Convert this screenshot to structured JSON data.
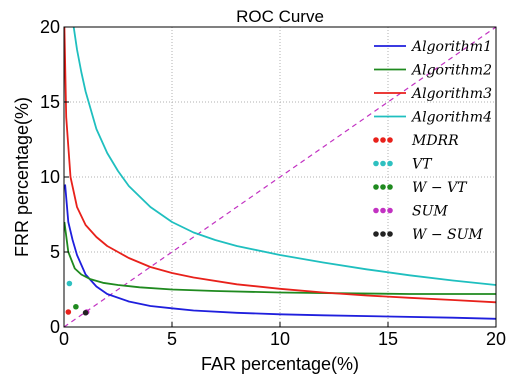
{
  "chart_data": {
    "type": "line",
    "title": "ROC Curve",
    "xlabel": "FAR percentage(%)",
    "ylabel": "FRR percentage(%)",
    "xlim": [
      0,
      20
    ],
    "ylim": [
      0,
      20
    ],
    "xticks": [
      0,
      5,
      10,
      15,
      20
    ],
    "yticks": [
      0,
      5,
      10,
      15,
      20
    ],
    "grid": true,
    "legend_position": "top-right",
    "series": [
      {
        "name": "Algorithm1",
        "color": "#1f1fdd",
        "x": [
          0.05,
          0.2,
          0.4,
          0.6,
          1.0,
          1.5,
          2.0,
          3.0,
          4.0,
          5.0,
          6.0,
          8.0,
          10.0,
          12.0,
          15.0,
          18.0,
          20.0
        ],
        "y": [
          9.5,
          7.0,
          5.8,
          4.8,
          3.5,
          2.7,
          2.2,
          1.7,
          1.4,
          1.25,
          1.1,
          0.95,
          0.85,
          0.78,
          0.7,
          0.62,
          0.55
        ]
      },
      {
        "name": "Algorithm2",
        "color": "#1f8a1f",
        "x": [
          0.02,
          0.2,
          0.5,
          0.8,
          1.2,
          1.8,
          2.5,
          3.5,
          5.0,
          7.0,
          10.0,
          13.0,
          16.0,
          20.0
        ],
        "y": [
          7.0,
          5.0,
          3.9,
          3.5,
          3.2,
          2.95,
          2.8,
          2.65,
          2.5,
          2.4,
          2.3,
          2.25,
          2.2,
          2.2
        ]
      },
      {
        "name": "Algorithm3",
        "color": "#e8211b",
        "x": [
          0.02,
          0.1,
          0.3,
          0.6,
          1.0,
          1.5,
          2.0,
          2.5,
          3.0,
          4.0,
          5.0,
          6.0,
          8.0,
          10.0,
          12.0,
          14.0,
          16.0,
          18.0,
          20.0
        ],
        "y": [
          20.0,
          14.0,
          10.0,
          8.0,
          6.8,
          6.0,
          5.4,
          5.0,
          4.6,
          4.0,
          3.6,
          3.3,
          2.85,
          2.55,
          2.3,
          2.1,
          1.95,
          1.8,
          1.65
        ]
      },
      {
        "name": "Algorithm4",
        "color": "#1fbfbf",
        "x": [
          0.45,
          0.6,
          0.8,
          1.0,
          1.5,
          2.0,
          2.5,
          3.0,
          4.0,
          5.0,
          6.0,
          7.0,
          8.0,
          10.0,
          12.0,
          14.0,
          16.0,
          18.0,
          20.0
        ],
        "y": [
          20.0,
          18.5,
          17.0,
          15.7,
          13.2,
          11.6,
          10.4,
          9.4,
          8.0,
          7.0,
          6.3,
          5.8,
          5.4,
          4.8,
          4.3,
          3.85,
          3.45,
          3.1,
          2.8
        ]
      }
    ],
    "points": [
      {
        "name": "MDRR",
        "color": "#e8211b",
        "x": 0.2,
        "y": 1.0
      },
      {
        "name": "VT",
        "color": "#2ec0c0",
        "x": 0.25,
        "y": 2.9
      },
      {
        "name": "W-VT",
        "color": "#1f8a1f",
        "x": 0.55,
        "y": 1.35
      },
      {
        "name": "SUM",
        "color": "#c232c2",
        "x": 1.05,
        "y": 1.0
      },
      {
        "name": "W-SUM",
        "color": "#222222",
        "x": 1.0,
        "y": 0.95
      }
    ],
    "diagonal": {
      "color": "#c232c2",
      "style": "dashed",
      "x": [
        0,
        20
      ],
      "y": [
        0,
        20
      ]
    },
    "legend": [
      {
        "label": "Algorithm1",
        "kind": "line",
        "color": "#1f1fdd"
      },
      {
        "label": "Algorithm2",
        "kind": "line",
        "color": "#1f8a1f"
      },
      {
        "label": "Algorithm3",
        "kind": "line",
        "color": "#e8211b"
      },
      {
        "label": "Algorithm4",
        "kind": "line",
        "color": "#1fbfbf"
      },
      {
        "label": "MDRR",
        "kind": "dots",
        "color": "#e8211b"
      },
      {
        "label": "VT",
        "kind": "dots",
        "color": "#2ec0c0"
      },
      {
        "label": "W − VT",
        "kind": "dots",
        "color": "#1f8a1f"
      },
      {
        "label": "SUM",
        "kind": "dots",
        "color": "#c232c2"
      },
      {
        "label": "W − SUM",
        "kind": "dots",
        "color": "#222222"
      }
    ]
  }
}
